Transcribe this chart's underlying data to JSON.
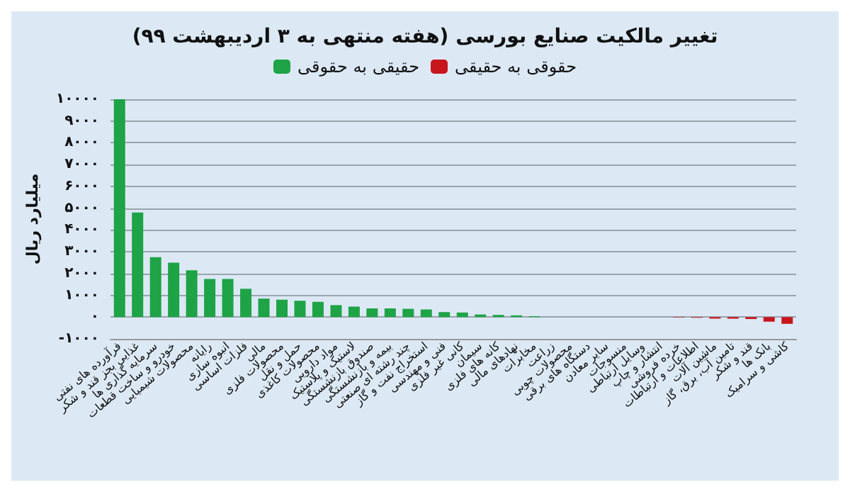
{
  "chart_data": {
    "type": "bar",
    "title": "تغییر مالکیت صنایع بورسی (هفته منتهی به ۳ اردیبهشت ۹۹)",
    "ylabel": "میلیارد ریال",
    "categories": [
      "فرآورده های نفتی",
      "غذایی بجز قند و شکر",
      "سرمایه گذاری ها",
      "خودرو و ساخت قطعات",
      "محصولات شیمیایی",
      "رایانه",
      "انبوه سازی",
      "فلزات اساسی",
      "مالی",
      "محصولات فلزی",
      "حمل و نقل",
      "محصولات کاغذی",
      "مواد دارویی",
      "لاستیک و پلاستیک",
      "صندوق بازنشستگی",
      "بیمه و بازنشستگی",
      "چند رشته ای صنعتی",
      "استخراج نفت و گاز",
      "فنی و مهندسی",
      "کانی غیر فلزی",
      "سیمان",
      "کانه های فلزی",
      "نهادهای مالی",
      "مخابرات",
      "زراعت",
      "محصولات چوبی",
      "دستگاه های برقی",
      "سایر معادن",
      "منسوجات",
      "وسایل ارتباطی",
      "انتشار و چاپ",
      "خرده فروشی",
      "اطلاعات و ارتباطات",
      "ماشین آلات",
      "تامین آب، برق، گاز",
      "قند و شکر",
      "بانک ها",
      "کاشی و سرامیک"
    ],
    "series": [
      {
        "name": "حقیقی به حقوقی",
        "color": "#1ea346",
        "values": [
          10000,
          4800,
          2750,
          2500,
          2150,
          1750,
          1750,
          1300,
          850,
          800,
          750,
          700,
          550,
          480,
          400,
          400,
          380,
          350,
          230,
          210,
          120,
          100,
          80,
          40,
          null,
          null,
          null,
          null,
          null,
          null,
          null,
          null,
          null,
          null,
          null,
          null,
          null,
          null
        ]
      },
      {
        "name": "حقوقی به حقیقی",
        "color": "#c8161d",
        "values": [
          null,
          null,
          null,
          null,
          null,
          null,
          null,
          null,
          null,
          null,
          null,
          null,
          null,
          null,
          null,
          null,
          null,
          null,
          null,
          null,
          null,
          null,
          null,
          null,
          null,
          null,
          null,
          null,
          null,
          null,
          null,
          -20,
          -30,
          -70,
          -70,
          -90,
          -210,
          -310
        ]
      }
    ],
    "ylim": [
      -1000,
      10000
    ],
    "yticks": [
      {
        "value": -1000,
        "label": "-۱۰۰۰"
      },
      {
        "value": 0,
        "label": "۰"
      },
      {
        "value": 1000,
        "label": "۱۰۰۰"
      },
      {
        "value": 2000,
        "label": "۲۰۰۰"
      },
      {
        "value": 3000,
        "label": "۳۰۰۰"
      },
      {
        "value": 4000,
        "label": "۴۰۰۰"
      },
      {
        "value": 5000,
        "label": "۵۰۰۰"
      },
      {
        "value": 6000,
        "label": "۶۰۰۰"
      },
      {
        "value": 7000,
        "label": "۷۰۰۰"
      },
      {
        "value": 8000,
        "label": "۸۰۰۰"
      },
      {
        "value": 9000,
        "label": "۹۰۰۰"
      },
      {
        "value": 10000,
        "label": "۱۰۰۰۰"
      }
    ],
    "grid": "y",
    "legend": "top"
  }
}
